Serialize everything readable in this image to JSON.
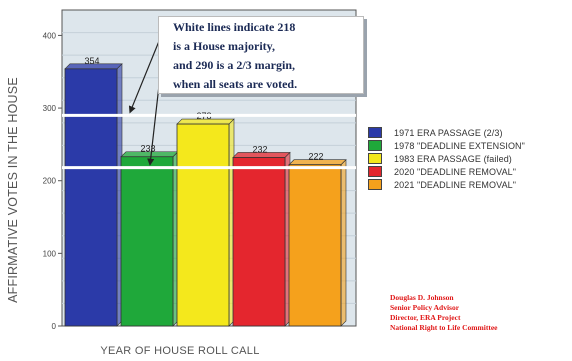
{
  "chart_data": {
    "type": "bar",
    "title": "",
    "ylabel": "AFFIRMATIVE VOTES IN THE HOUSE",
    "xlabel": "YEAR OF HOUSE ROLL CALL",
    "ylim": [
      0,
      435
    ],
    "yticks": [
      0,
      100,
      200,
      300,
      400
    ],
    "grid": true,
    "legend_position": "right",
    "categories": [
      "1971 ERA PASSAGE (2/3)",
      "1978 \"DEADLINE EXTENSION\"",
      "1983 ERA PASSAGE (failed)",
      "2020 \"DEADLINE REMOVAL\"",
      "2021 \"DEADLINE REMOVAL\""
    ],
    "values": [
      354,
      233,
      278,
      232,
      222
    ],
    "data_labels": [
      "354",
      "233",
      "278",
      "232",
      "222"
    ],
    "colors": [
      "#2b3aa8",
      "#1fa83a",
      "#f4e81c",
      "#e4262e",
      "#f5a11c"
    ],
    "reference_lines": [
      218,
      290
    ]
  },
  "annotation": {
    "lines": [
      "White lines indicate 218",
      "is a House majority,",
      "and 290 is a 2/3 margin,",
      "when all seats are voted."
    ]
  },
  "credit": {
    "lines": [
      "Douglas D. Johnson",
      "Senior Policy Advisor",
      "Director, ERA Project",
      "National Right to Life Committee"
    ]
  },
  "colors": {
    "plot_background": "#dde6ec",
    "grid": "#c4d0d9",
    "reference_line": "#ffffff",
    "credit_text": "#e01818",
    "annotation_text": "#1b2a55"
  }
}
